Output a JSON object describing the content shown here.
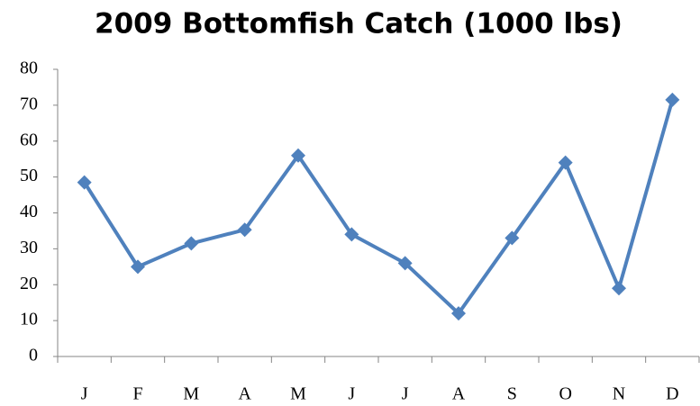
{
  "chart_data": {
    "type": "line",
    "title": "2009 Bottomfish Catch (1000 lbs)",
    "categories": [
      "J",
      "F",
      "M",
      "A",
      "M",
      "J",
      "J",
      "A",
      "S",
      "O",
      "N",
      "D"
    ],
    "values": [
      48.5,
      25,
      31.5,
      35.3,
      56,
      34,
      26,
      12,
      33,
      54,
      19,
      71.5
    ],
    "color": "#4f81bd",
    "ylim": [
      0,
      80
    ],
    "yticks": [
      0,
      10,
      20,
      30,
      40,
      50,
      60,
      70,
      80
    ],
    "grid": false
  }
}
